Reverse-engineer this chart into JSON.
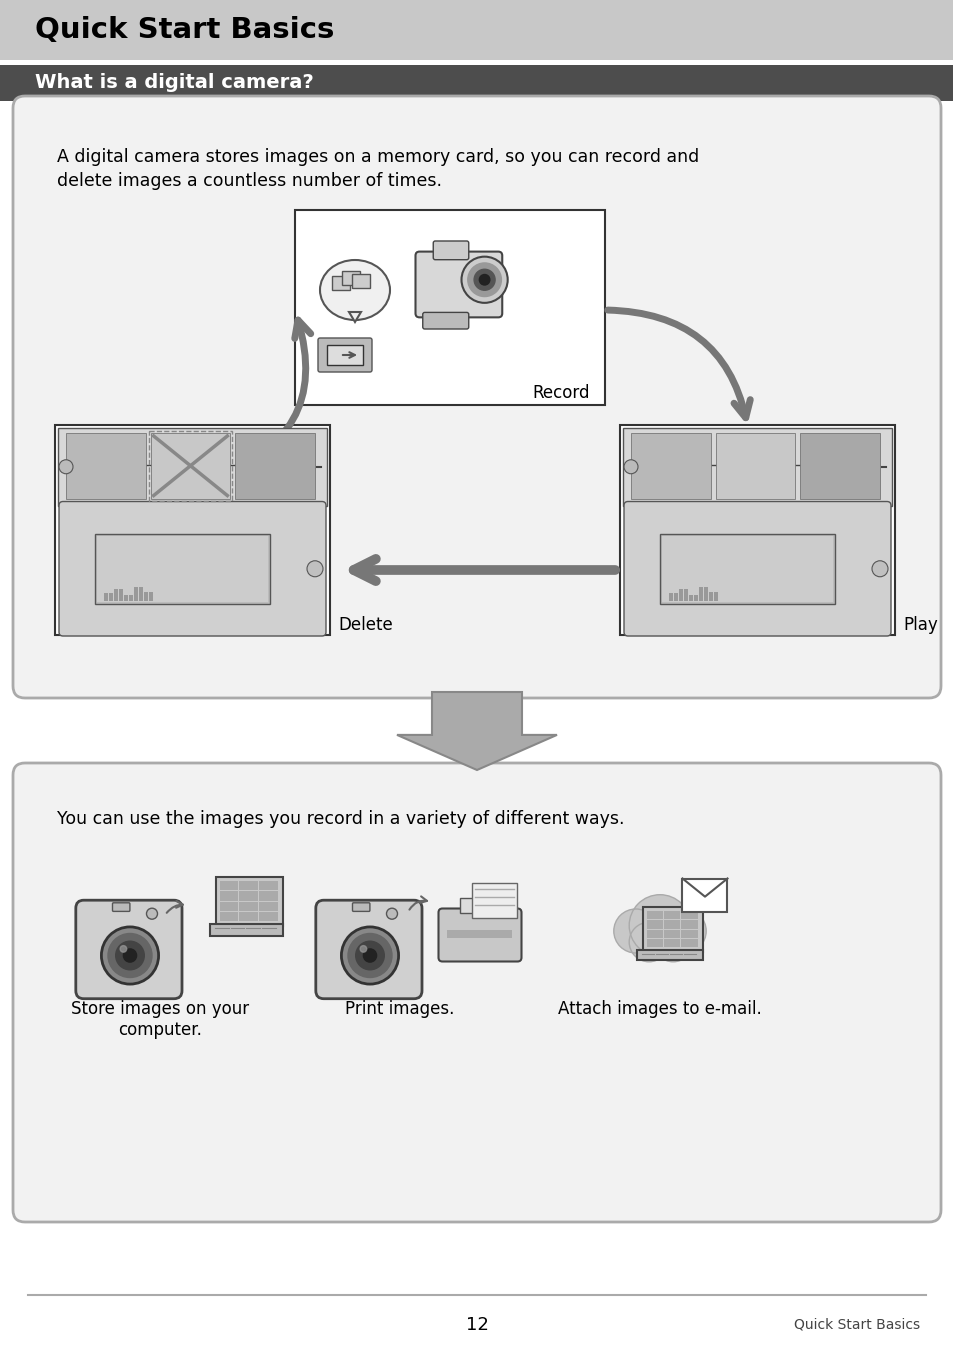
{
  "page_bg": "#ffffff",
  "header_bg": "#c8c8c8",
  "header_text": "Quick Start Basics",
  "header_text_color": "#000000",
  "subheader_bg": "#4d4d4d",
  "subheader_text": "What is a digital camera?",
  "subheader_text_color": "#ffffff",
  "box1_text_line1": "A digital camera stores images on a memory card, so you can record and",
  "box1_text_line2": "delete images a countless number of times.",
  "box_bg": "#f2f2f2",
  "box_border": "#aaaaaa",
  "label_record": "Record",
  "label_delete": "Delete",
  "label_play": "Play",
  "box2_text": "You can use the images you record in a variety of different ways.",
  "caption1": "Store images on your\ncomputer.",
  "caption2": "Print images.",
  "caption3": "Attach images to e-mail.",
  "footer_line_color": "#aaaaaa",
  "page_number": "12",
  "footer_right": "Quick Start Basics",
  "arrow_color": "#777777",
  "arrow_color_dark": "#555555"
}
